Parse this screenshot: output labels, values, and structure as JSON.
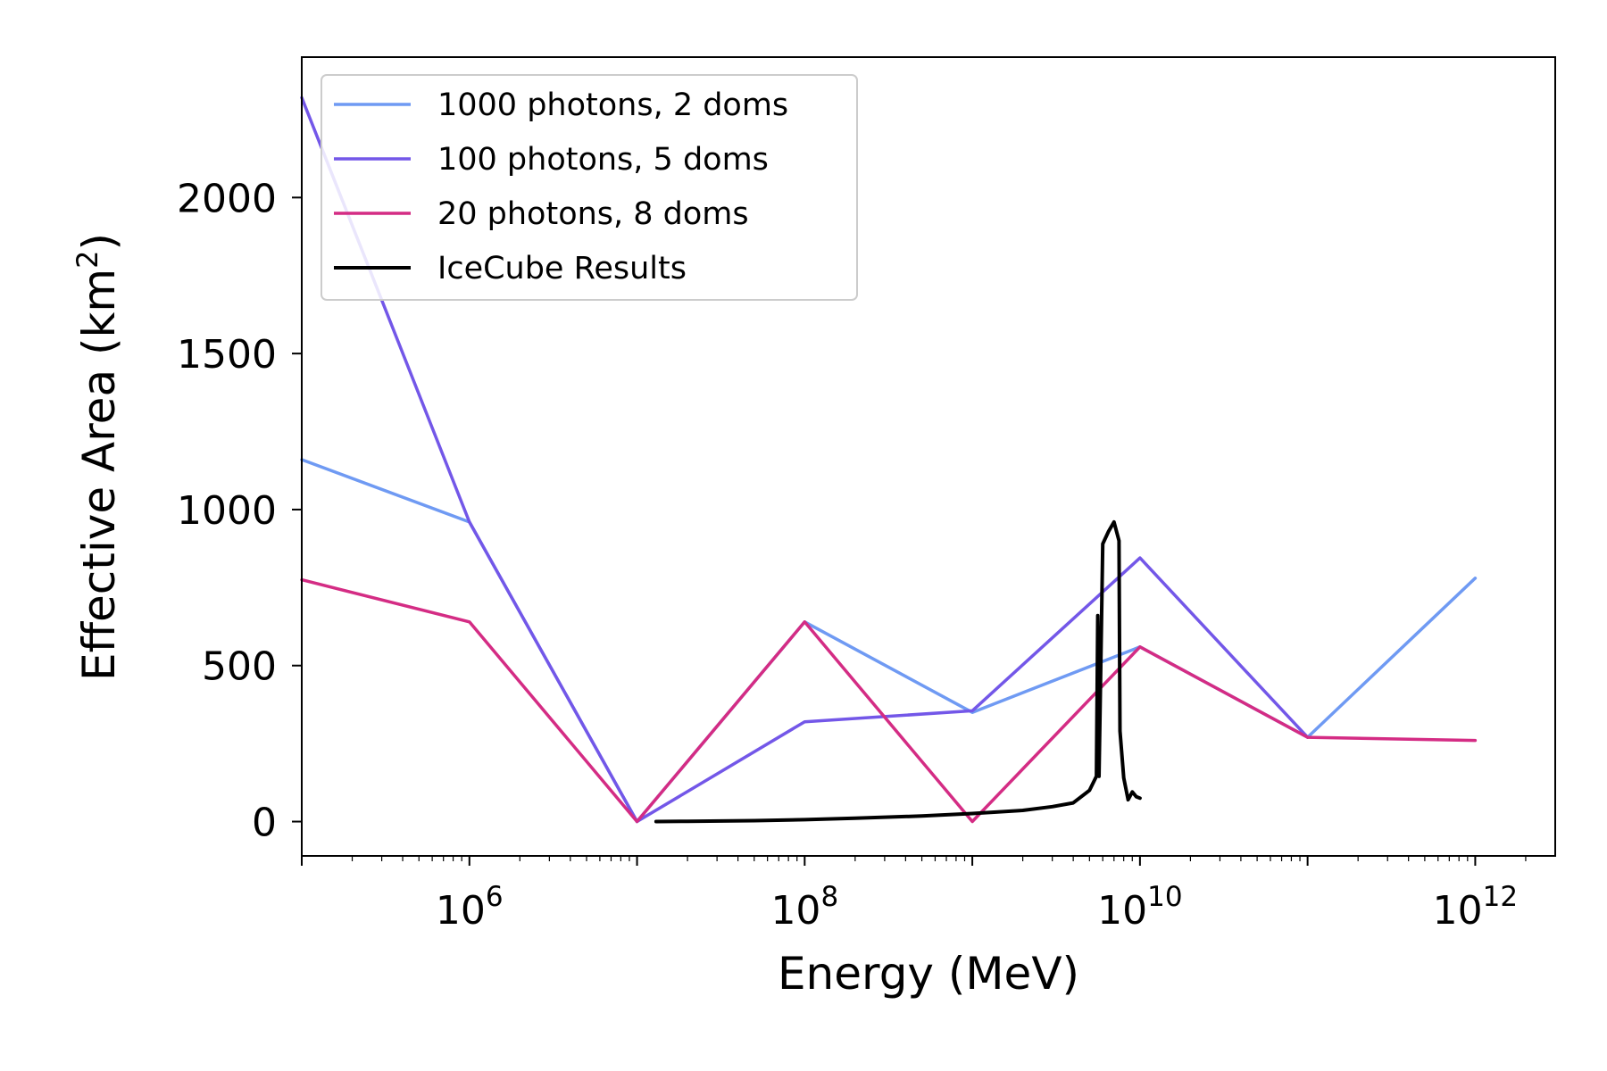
{
  "chart_data": {
    "type": "line",
    "xscale": "log",
    "xlabel": "Energy (MeV)",
    "ylabel_main": "Effective Area (km",
    "ylabel_sup": "2",
    "ylabel_close": ")",
    "xlim": [
      100000,
      3000000000000
    ],
    "ylim": [
      -110,
      2450
    ],
    "xticks": [
      {
        "value": 1000000,
        "base": "10",
        "exp": "6"
      },
      {
        "value": 100000000,
        "base": "10",
        "exp": "8"
      },
      {
        "value": 10000000000,
        "base": "10",
        "exp": "10"
      },
      {
        "value": 1000000000000,
        "base": "10",
        "exp": "12"
      }
    ],
    "yticks": [
      {
        "value": 0,
        "label": "0"
      },
      {
        "value": 500,
        "label": "500"
      },
      {
        "value": 1000,
        "label": "1000"
      },
      {
        "value": 1500,
        "label": "1500"
      },
      {
        "value": 2000,
        "label": "2000"
      }
    ],
    "legend_position": "top-left",
    "grid": false,
    "series": [
      {
        "name": "1000 photons, 2 doms",
        "color": "#6f9af3",
        "x": [
          100000,
          1000000,
          10000000,
          100000000,
          1000000000,
          10000000000,
          100000000000,
          1000000000000
        ],
        "y": [
          1160,
          960,
          0,
          640,
          350,
          560,
          270,
          780
        ]
      },
      {
        "name": "100 photons, 5 doms",
        "color": "#7357e8",
        "x": [
          100000,
          1000000,
          10000000,
          100000000,
          1000000000,
          10000000000,
          100000000000
        ],
        "y": [
          2320,
          960,
          0,
          320,
          355,
          845,
          270
        ]
      },
      {
        "name": "20 photons, 8 doms",
        "color": "#d42c84",
        "x": [
          100000,
          1000000,
          10000000,
          100000000,
          1000000000,
          10000000000,
          100000000000,
          1000000000000
        ],
        "y": [
          775,
          640,
          0,
          640,
          0,
          560,
          270,
          260
        ]
      },
      {
        "name": "IceCube Results",
        "color": "#000000",
        "x": [
          13000000,
          20000000,
          50000000,
          100000000,
          200000000,
          500000000,
          1000000000,
          2000000000,
          3000000000,
          4000000000,
          5000000000,
          5500000000,
          5600000000,
          5700000000,
          6000000000,
          6500000000,
          7000000000,
          7500000000,
          7600000000,
          8000000000,
          8500000000,
          9000000000,
          9500000000,
          10000000000
        ],
        "y": [
          0,
          1,
          3,
          6,
          11,
          18,
          26,
          36,
          48,
          60,
          100,
          145,
          660,
          145,
          890,
          930,
          960,
          900,
          290,
          140,
          70,
          95,
          80,
          75
        ]
      }
    ]
  }
}
